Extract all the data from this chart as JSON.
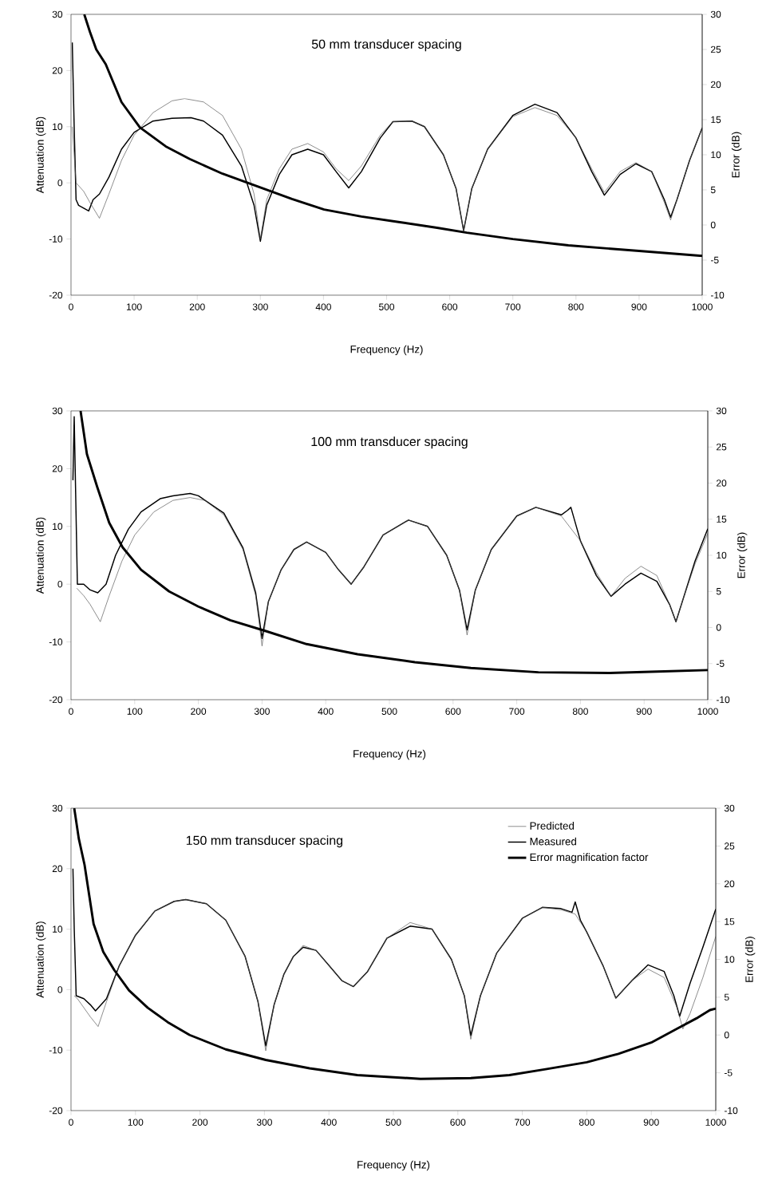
{
  "chart_data": [
    {
      "type": "line",
      "title": "50 mm transducer spacing",
      "xlabel": "Frequency (Hz)",
      "ylabel": "Attenuation (dB)",
      "y2label": "Error (dB)",
      "xlim": [
        0,
        1000
      ],
      "xticks": [
        0,
        100,
        200,
        300,
        400,
        500,
        600,
        700,
        800,
        900,
        1000
      ],
      "ylim": [
        -20,
        30
      ],
      "yticks": [
        -20,
        -10,
        0,
        10,
        20,
        30
      ],
      "y2lim": [
        -10,
        30
      ],
      "y2ticks": [
        -10,
        -5,
        0,
        5,
        10,
        15,
        20,
        25,
        30
      ],
      "series": [
        {
          "color": "#555555",
          "x": [
            2,
            8,
            20,
            30,
            45,
            60,
            80,
            100,
            130,
            160,
            180,
            210,
            240,
            270,
            290,
            300,
            310,
            330,
            350,
            375,
            400,
            420,
            440,
            460,
            490,
            510,
            540,
            560,
            590,
            610,
            622,
            635,
            660,
            700,
            735,
            770,
            800,
            825,
            845,
            870,
            895,
            920,
            940,
            950,
            960,
            980,
            1000
          ],
          "values": [
            10,
            0,
            -1.5,
            -3.5,
            -6.3,
            -2,
            4,
            8.5,
            12.5,
            14.6,
            15,
            14.4,
            12,
            6,
            -2,
            -10,
            -3,
            2.5,
            6,
            7,
            5.5,
            2.5,
            0.4,
            3,
            8.5,
            10.9,
            11,
            10,
            5,
            -1,
            -8.5,
            -1,
            6,
            11.8,
            13.4,
            12,
            8,
            2.5,
            -1.7,
            2,
            3.6,
            2,
            -3.5,
            -6.6,
            -3,
            4,
            9.8
          ]
        },
        {
          "color": "#000000",
          "x": [
            2,
            5,
            8,
            12,
            20,
            28,
            35,
            45,
            60,
            80,
            100,
            130,
            160,
            190,
            210,
            240,
            270,
            290,
            300,
            310,
            330,
            350,
            375,
            400,
            420,
            440,
            460,
            490,
            510,
            540,
            560,
            590,
            610,
            622,
            635,
            660,
            700,
            735,
            770,
            800,
            825,
            845,
            870,
            895,
            920,
            940,
            950,
            960,
            980,
            1000
          ],
          "values": [
            25,
            10,
            -3,
            -4,
            -4.5,
            -5,
            -3,
            -2,
            1,
            6,
            9,
            11,
            11.5,
            11.6,
            11,
            8.5,
            3,
            -4,
            -10.4,
            -4,
            1.5,
            5,
            6,
            5,
            2,
            -0.9,
            2,
            8,
            10.9,
            11,
            10,
            5,
            -1,
            -8.5,
            -1,
            6,
            12,
            14,
            12.5,
            8,
            2,
            -2.2,
            1.5,
            3.4,
            2,
            -3,
            -6.1,
            -3,
            4,
            9.8
          ]
        },
        {
          "color": "#000000",
          "axis": "y2",
          "x": [
            21,
            30,
            40,
            55,
            80,
            109,
            150,
            188,
            240,
            295,
            350,
            401,
            460,
            521,
            580,
            627,
            700,
            788,
            900,
            1000
          ],
          "values": [
            30,
            27.5,
            25,
            22.9,
            17.5,
            13.9,
            11.2,
            9.4,
            7.3,
            5.5,
            3.7,
            2.2,
            1.2,
            0.4,
            -0.4,
            -1.1,
            -2,
            -2.9,
            -3.7,
            -4.4
          ]
        }
      ]
    },
    {
      "type": "line",
      "title": "100 mm transducer spacing",
      "xlabel": "Frequency (Hz)",
      "ylabel": "Attenuation (dB)",
      "y2label": "Error (dB)",
      "xlim": [
        0,
        1000
      ],
      "xticks": [
        0,
        100,
        200,
        300,
        400,
        500,
        600,
        700,
        800,
        900,
        1000
      ],
      "ylim": [
        -20,
        30
      ],
      "yticks": [
        -20,
        -10,
        0,
        10,
        20,
        30
      ],
      "y2lim": [
        -10,
        30
      ],
      "y2ticks": [
        -10,
        -5,
        0,
        5,
        10,
        15,
        20,
        25,
        30
      ],
      "series": [
        {
          "color": "#555555",
          "x": [
            9,
            20,
            30,
            46,
            60,
            80,
            100,
            130,
            160,
            187,
            210,
            240,
            270,
            290,
            300,
            310,
            330,
            350,
            370,
            400,
            420,
            440,
            460,
            490,
            530,
            560,
            590,
            610,
            622,
            635,
            660,
            700,
            730,
            770,
            800,
            825,
            848,
            870,
            895,
            920,
            940,
            950,
            960,
            980,
            1000
          ],
          "values": [
            -0.7,
            -2,
            -3.5,
            -6.5,
            -2,
            4,
            8.5,
            12.5,
            14.5,
            15,
            14.5,
            12,
            6,
            -2,
            -10.7,
            -3,
            2.5,
            6,
            7.3,
            5.5,
            2.5,
            0,
            3,
            8.5,
            11.1,
            10,
            5,
            -1,
            -8.8,
            -1,
            6,
            11.8,
            13.3,
            11.8,
            7.5,
            2,
            -2.1,
            1,
            3.1,
            1.5,
            -3.5,
            -6.5,
            -3,
            3.5,
            8.8
          ]
        },
        {
          "color": "#000000",
          "x": [
            3,
            5,
            10,
            20,
            30,
            42,
            55,
            70,
            90,
            110,
            140,
            160,
            187,
            200,
            240,
            270,
            290,
            300,
            310,
            330,
            350,
            370,
            400,
            420,
            440,
            460,
            490,
            530,
            560,
            590,
            610,
            622,
            635,
            660,
            700,
            730,
            770,
            780,
            785,
            800,
            825,
            848,
            870,
            895,
            920,
            940,
            950,
            960,
            980,
            1000
          ],
          "values": [
            18,
            29,
            0,
            0,
            -1,
            -1.5,
            0,
            5,
            9.5,
            12.5,
            14.8,
            15.3,
            15.7,
            15.3,
            12.3,
            6.3,
            -1.5,
            -9.4,
            -3,
            2.5,
            6,
            7.3,
            5.5,
            2.5,
            0,
            3,
            8.5,
            11.1,
            10,
            5,
            -1,
            -7.9,
            -1,
            6,
            11.8,
            13.3,
            12,
            12.8,
            13.3,
            7.5,
            1.5,
            -2.1,
            0,
            1.9,
            0.5,
            -3.5,
            -6.5,
            -3,
            4,
            9.6
          ]
        },
        {
          "color": "#000000",
          "axis": "y2",
          "x": [
            15,
            25,
            41,
            60,
            81,
            110,
            154,
            200,
            250,
            306,
            370,
            450,
            540,
            628,
            734,
            846,
            920,
            1000
          ],
          "values": [
            30,
            24,
            19.5,
            14.5,
            11.1,
            8,
            5,
            2.9,
            1,
            -0.5,
            -2.3,
            -3.7,
            -4.8,
            -5.6,
            -6.2,
            -6.3,
            -6.1,
            -5.9
          ]
        }
      ]
    },
    {
      "type": "line",
      "title": "150 mm transducer spacing",
      "xlabel": "Frequency (Hz)",
      "ylabel": "Attenuation (dB)",
      "y2label": "Error (dB)",
      "xlim": [
        0,
        1000
      ],
      "xticks": [
        0,
        100,
        200,
        300,
        400,
        500,
        600,
        700,
        800,
        900,
        1000
      ],
      "ylim": [
        -20,
        30
      ],
      "yticks": [
        -20,
        -10,
        0,
        10,
        20,
        30
      ],
      "y2lim": [
        -10,
        30
      ],
      "y2ticks": [
        -10,
        -5,
        0,
        5,
        10,
        15,
        20,
        25,
        30
      ],
      "legend": "top right",
      "series": [
        {
          "name": "Predicted",
          "color": "#555555",
          "x": [
            5,
            10,
            20,
            30,
            42,
            55,
            75,
            100,
            130,
            160,
            178,
            210,
            240,
            270,
            290,
            302,
            315,
            330,
            345,
            360,
            380,
            400,
            420,
            438,
            460,
            490,
            526,
            560,
            590,
            610,
            620,
            635,
            660,
            700,
            731,
            760,
            782,
            800,
            825,
            845,
            870,
            895,
            920,
            940,
            949,
            960,
            980,
            1000
          ],
          "values": [
            -1,
            -1.5,
            -3,
            -4.5,
            -6.1,
            -2,
            4,
            9,
            13,
            14.6,
            14.9,
            14.2,
            11.5,
            5.5,
            -2,
            -10.1,
            -2.5,
            2.5,
            5.5,
            7.3,
            6.5,
            4,
            1.5,
            0.5,
            3,
            8.5,
            11.1,
            10,
            5,
            -1,
            -8.2,
            -1,
            6,
            11.8,
            13.6,
            13.2,
            12.5,
            9.5,
            4,
            -1.4,
            1.5,
            3.4,
            2,
            -3,
            -6.5,
            -4,
            2,
            8.8
          ]
        },
        {
          "name": "Measured",
          "color": "#000000",
          "x": [
            3,
            5,
            8,
            20,
            30,
            38,
            55,
            75,
            100,
            130,
            160,
            178,
            210,
            240,
            270,
            290,
            302,
            315,
            330,
            345,
            360,
            380,
            400,
            420,
            438,
            460,
            490,
            526,
            560,
            590,
            610,
            620,
            635,
            660,
            700,
            731,
            760,
            777,
            782,
            790,
            800,
            825,
            845,
            870,
            895,
            920,
            935,
            944,
            960,
            980,
            1000
          ],
          "values": [
            20,
            10,
            -1,
            -1.5,
            -2.5,
            -3.5,
            -1.5,
            4,
            9,
            13,
            14.6,
            14.9,
            14.2,
            11.5,
            5.5,
            -2,
            -9.3,
            -2.5,
            2.5,
            5.5,
            7,
            6.5,
            4,
            1.5,
            0.5,
            3,
            8.5,
            10.5,
            10,
            5,
            -1,
            -7.6,
            -1,
            6,
            11.8,
            13.6,
            13.4,
            12.8,
            14.5,
            11.5,
            9.5,
            4,
            -1.4,
            1.5,
            4.1,
            3,
            -1,
            -4.4,
            1,
            7,
            13.3
          ]
        },
        {
          "name": "Error magnification factor",
          "color": "#000000",
          "axis": "y2",
          "x": [
            5,
            12,
            21,
            35,
            50,
            67,
            90,
            119,
            150,
            184,
            240,
            302,
            370,
            444,
            542,
            620,
            680,
            738,
            800,
            849,
            900,
            939,
            970,
            991,
            1000
          ],
          "values": [
            30,
            26,
            22.5,
            14.7,
            11,
            8.6,
            5.9,
            3.6,
            1.7,
            0,
            -1.9,
            -3.3,
            -4.4,
            -5.3,
            -5.8,
            -5.7,
            -5.3,
            -4.5,
            -3.6,
            -2.5,
            -1,
            0.8,
            2.2,
            3.3,
            3.5
          ]
        }
      ]
    }
  ]
}
